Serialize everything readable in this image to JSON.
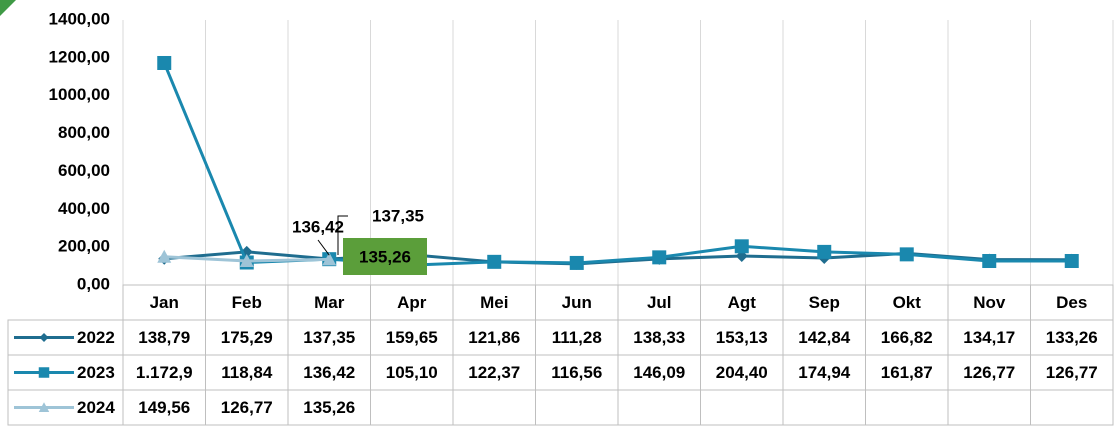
{
  "chart_data": {
    "type": "line",
    "categories": [
      "Jan",
      "Feb",
      "Mar",
      "Apr",
      "Mei",
      "Jun",
      "Jul",
      "Agt",
      "Sep",
      "Okt",
      "Nov",
      "Des"
    ],
    "series": [
      {
        "name": "2022",
        "color": "#1f6d8f",
        "marker": "diamond",
        "values": [
          138.79,
          175.29,
          137.35,
          159.65,
          121.86,
          111.28,
          138.33,
          153.13,
          142.84,
          166.82,
          134.17,
          133.26
        ],
        "value_labels": [
          "138,79",
          "175,29",
          "137,35",
          "159,65",
          "121,86",
          "111,28",
          "138,33",
          "153,13",
          "142,84",
          "166,82",
          "134,17",
          "133,26"
        ]
      },
      {
        "name": "2023",
        "color": "#1a88ae",
        "marker": "square",
        "values": [
          1172.9,
          118.84,
          136.42,
          105.1,
          122.37,
          116.56,
          146.09,
          204.4,
          174.94,
          161.87,
          126.77,
          126.77
        ],
        "value_labels": [
          "1.172,9",
          "118,84",
          "136,42",
          "105,10",
          "122,37",
          "116,56",
          "146,09",
          "204,40",
          "174,94",
          "161,87",
          "126,77",
          "126,77"
        ]
      },
      {
        "name": "2024",
        "color": "#9ec4d7",
        "marker": "triangle",
        "values": [
          149.56,
          126.77,
          135.26,
          null,
          null,
          null,
          null,
          null,
          null,
          null,
          null,
          null
        ],
        "value_labels": [
          "149,56",
          "126,77",
          "135,26",
          null,
          null,
          null,
          null,
          null,
          null,
          null,
          null,
          null
        ]
      }
    ],
    "ylim": [
      0,
      1400
    ],
    "yticks": [
      {
        "value": 0,
        "label": "0,00"
      },
      {
        "value": 200,
        "label": "200,00"
      },
      {
        "value": 400,
        "label": "400,00"
      },
      {
        "value": 600,
        "label": "600,00"
      },
      {
        "value": 800,
        "label": "800,00"
      },
      {
        "value": 1000,
        "label": "1000,00"
      },
      {
        "value": 1200,
        "label": "1200,00"
      },
      {
        "value": 1400,
        "label": "1400,00"
      }
    ],
    "label_box_color": "#5b9e3a"
  }
}
